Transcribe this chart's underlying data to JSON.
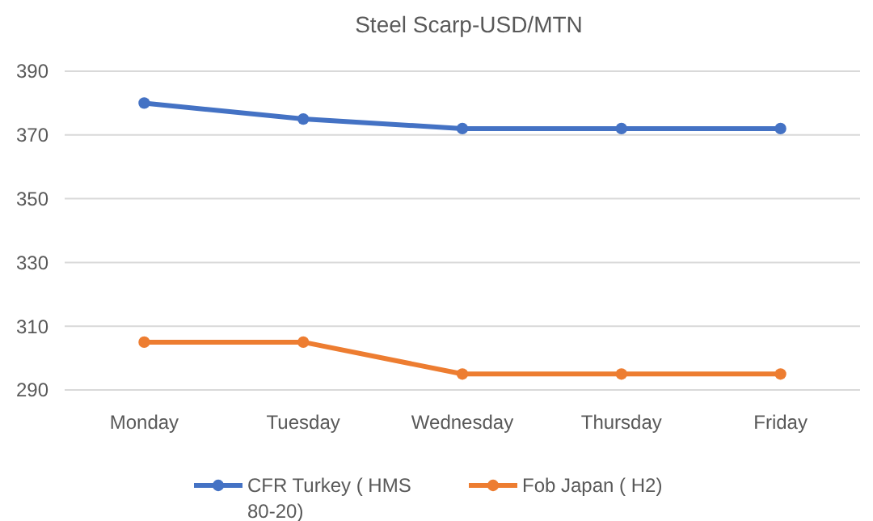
{
  "chart_data": {
    "type": "line",
    "title": "Steel Scarp-USD/MTN",
    "categories": [
      "Monday",
      "Tuesday",
      "Wednesday",
      "Thursday",
      "Friday"
    ],
    "series": [
      {
        "name": "CFR Turkey ( HMS 80-20)",
        "color": "#4472c4",
        "values": [
          380,
          375,
          372,
          372,
          372
        ]
      },
      {
        "name": "Fob Japan ( H2)",
        "color": "#ed7d31",
        "values": [
          305,
          305,
          295,
          295,
          295
        ]
      }
    ],
    "ylim": [
      290,
      390
    ],
    "yticks": [
      290,
      310,
      330,
      350,
      370,
      390
    ],
    "grid": "y",
    "legend": "bottom",
    "marker": "circle",
    "line_style": "solid"
  }
}
